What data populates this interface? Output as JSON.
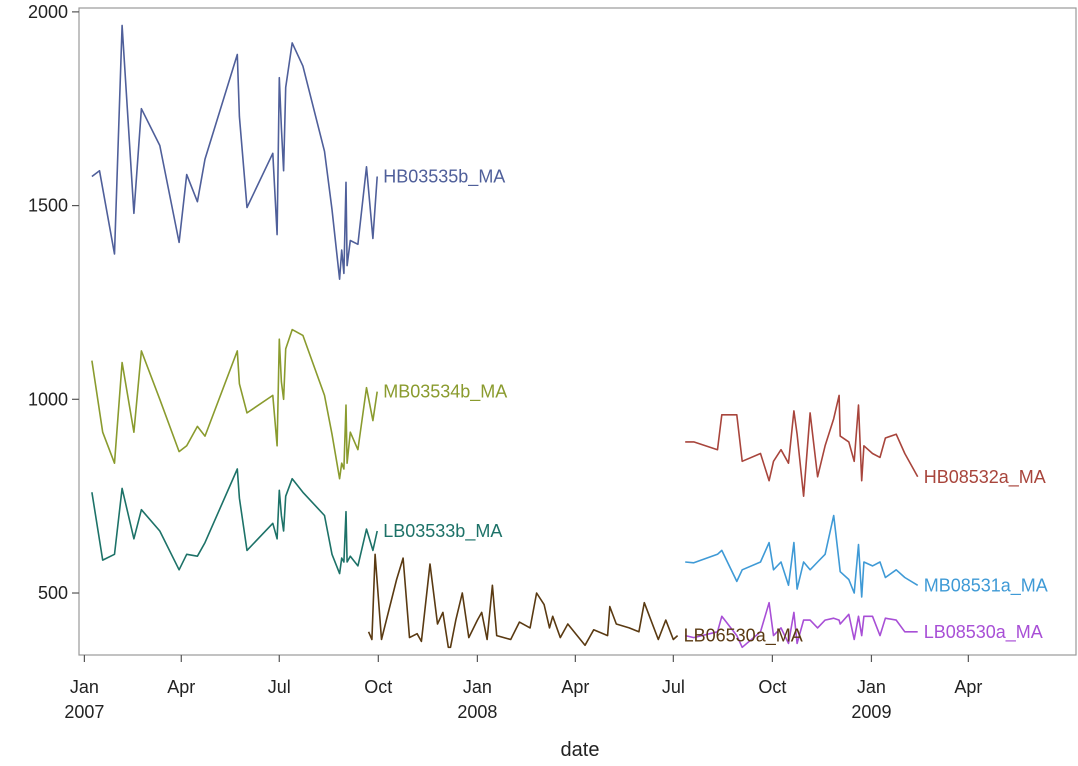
{
  "chart_data": {
    "type": "line",
    "title": "",
    "xlabel": "date",
    "ylabel": "",
    "x_type": "date",
    "xlim": [
      "2006-12-27",
      "2009-07-10"
    ],
    "ylim": [
      340,
      2010
    ],
    "grid": false,
    "legend": "none; series labelled at line ends",
    "y_ticks": [
      500,
      1000,
      1500,
      2000
    ],
    "x_ticks": [
      {
        "date": "2007-01-01",
        "label": "Jan",
        "sublabel": "2007"
      },
      {
        "date": "2007-04-01",
        "label": "Apr",
        "sublabel": ""
      },
      {
        "date": "2007-07-01",
        "label": "Jul",
        "sublabel": ""
      },
      {
        "date": "2007-10-01",
        "label": "Oct",
        "sublabel": ""
      },
      {
        "date": "2008-01-01",
        "label": "Jan",
        "sublabel": "2008"
      },
      {
        "date": "2008-04-01",
        "label": "Apr",
        "sublabel": ""
      },
      {
        "date": "2008-07-01",
        "label": "Jul",
        "sublabel": ""
      },
      {
        "date": "2008-10-01",
        "label": "Oct",
        "sublabel": ""
      },
      {
        "date": "2009-01-01",
        "label": "Jan",
        "sublabel": "2009"
      },
      {
        "date": "2009-04-01",
        "label": "Apr",
        "sublabel": ""
      }
    ],
    "series": [
      {
        "name": "HB03535b_MA",
        "color": "#4f5f9a",
        "points": [
          [
            "2007-01-08",
            1575
          ],
          [
            "2007-01-15",
            1590
          ],
          [
            "2007-01-29",
            1375
          ],
          [
            "2007-02-05",
            1965
          ],
          [
            "2007-02-16",
            1480
          ],
          [
            "2007-02-23",
            1750
          ],
          [
            "2007-03-12",
            1655
          ],
          [
            "2007-03-30",
            1405
          ],
          [
            "2007-04-06",
            1580
          ],
          [
            "2007-04-16",
            1510
          ],
          [
            "2007-04-23",
            1620
          ],
          [
            "2007-05-23",
            1890
          ],
          [
            "2007-05-25",
            1730
          ],
          [
            "2007-06-01",
            1495
          ],
          [
            "2007-06-25",
            1635
          ],
          [
            "2007-06-29",
            1425
          ],
          [
            "2007-07-01",
            1830
          ],
          [
            "2007-07-03",
            1700
          ],
          [
            "2007-07-05",
            1590
          ],
          [
            "2007-07-07",
            1805
          ],
          [
            "2007-07-13",
            1920
          ],
          [
            "2007-07-23",
            1860
          ],
          [
            "2007-08-12",
            1640
          ],
          [
            "2007-08-19",
            1490
          ],
          [
            "2007-08-26",
            1310
          ],
          [
            "2007-08-28",
            1385
          ],
          [
            "2007-08-30",
            1325
          ],
          [
            "2007-09-01",
            1560
          ],
          [
            "2007-09-02",
            1345
          ],
          [
            "2007-09-05",
            1410
          ],
          [
            "2007-09-12",
            1400
          ],
          [
            "2007-09-20",
            1600
          ],
          [
            "2007-09-26",
            1415
          ],
          [
            "2007-09-30",
            1575
          ]
        ]
      },
      {
        "name": "MB03534b_MA",
        "color": "#8a9b2e",
        "points": [
          [
            "2007-01-08",
            1100
          ],
          [
            "2007-01-18",
            915
          ],
          [
            "2007-01-29",
            835
          ],
          [
            "2007-02-05",
            1095
          ],
          [
            "2007-02-16",
            915
          ],
          [
            "2007-02-23",
            1125
          ],
          [
            "2007-03-12",
            1000
          ],
          [
            "2007-03-30",
            865
          ],
          [
            "2007-04-06",
            880
          ],
          [
            "2007-04-16",
            930
          ],
          [
            "2007-04-23",
            905
          ],
          [
            "2007-05-23",
            1125
          ],
          [
            "2007-05-25",
            1040
          ],
          [
            "2007-06-01",
            965
          ],
          [
            "2007-06-25",
            1010
          ],
          [
            "2007-06-29",
            880
          ],
          [
            "2007-07-01",
            1155
          ],
          [
            "2007-07-03",
            1045
          ],
          [
            "2007-07-05",
            1000
          ],
          [
            "2007-07-07",
            1130
          ],
          [
            "2007-07-13",
            1180
          ],
          [
            "2007-07-23",
            1165
          ],
          [
            "2007-08-12",
            1010
          ],
          [
            "2007-08-19",
            910
          ],
          [
            "2007-08-26",
            795
          ],
          [
            "2007-08-28",
            835
          ],
          [
            "2007-08-30",
            820
          ],
          [
            "2007-09-01",
            985
          ],
          [
            "2007-09-02",
            835
          ],
          [
            "2007-09-05",
            915
          ],
          [
            "2007-09-12",
            870
          ],
          [
            "2007-09-20",
            1030
          ],
          [
            "2007-09-26",
            945
          ],
          [
            "2007-09-30",
            1020
          ]
        ]
      },
      {
        "name": "LB03533b_MA",
        "color": "#1d7268",
        "points": [
          [
            "2007-01-08",
            760
          ],
          [
            "2007-01-18",
            585
          ],
          [
            "2007-01-29",
            600
          ],
          [
            "2007-02-05",
            770
          ],
          [
            "2007-02-16",
            640
          ],
          [
            "2007-02-23",
            715
          ],
          [
            "2007-03-12",
            660
          ],
          [
            "2007-03-30",
            560
          ],
          [
            "2007-04-06",
            600
          ],
          [
            "2007-04-16",
            595
          ],
          [
            "2007-04-23",
            630
          ],
          [
            "2007-05-23",
            820
          ],
          [
            "2007-05-25",
            745
          ],
          [
            "2007-06-01",
            610
          ],
          [
            "2007-06-25",
            680
          ],
          [
            "2007-06-29",
            640
          ],
          [
            "2007-07-01",
            765
          ],
          [
            "2007-07-03",
            700
          ],
          [
            "2007-07-05",
            660
          ],
          [
            "2007-07-07",
            750
          ],
          [
            "2007-07-13",
            795
          ],
          [
            "2007-07-23",
            760
          ],
          [
            "2007-08-12",
            700
          ],
          [
            "2007-08-19",
            600
          ],
          [
            "2007-08-26",
            550
          ],
          [
            "2007-08-28",
            590
          ],
          [
            "2007-08-30",
            580
          ],
          [
            "2007-09-01",
            710
          ],
          [
            "2007-09-02",
            580
          ],
          [
            "2007-09-05",
            595
          ],
          [
            "2007-09-12",
            570
          ],
          [
            "2007-09-20",
            665
          ],
          [
            "2007-09-26",
            610
          ],
          [
            "2007-09-30",
            660
          ]
        ]
      },
      {
        "name": "LB06530a_MA",
        "color": "#5a3a12",
        "points": [
          [
            "2007-09-22",
            400
          ],
          [
            "2007-09-25",
            380
          ],
          [
            "2007-09-28",
            600
          ],
          [
            "2007-10-04",
            380
          ],
          [
            "2007-10-18",
            535
          ],
          [
            "2007-10-24",
            590
          ],
          [
            "2007-10-30",
            385
          ],
          [
            "2007-11-06",
            395
          ],
          [
            "2007-11-10",
            375
          ],
          [
            "2007-11-18",
            575
          ],
          [
            "2007-11-25",
            420
          ],
          [
            "2007-11-30",
            450
          ],
          [
            "2007-12-05",
            360
          ],
          [
            "2007-12-07",
            360
          ],
          [
            "2007-12-12",
            430
          ],
          [
            "2007-12-18",
            500
          ],
          [
            "2007-12-24",
            385
          ],
          [
            "2008-01-01",
            430
          ],
          [
            "2008-01-05",
            450
          ],
          [
            "2008-01-10",
            380
          ],
          [
            "2008-01-15",
            520
          ],
          [
            "2008-01-19",
            390
          ],
          [
            "2008-02-01",
            380
          ],
          [
            "2008-02-09",
            425
          ],
          [
            "2008-02-19",
            410
          ],
          [
            "2008-02-25",
            500
          ],
          [
            "2008-03-03",
            470
          ],
          [
            "2008-03-08",
            410
          ],
          [
            "2008-03-11",
            440
          ],
          [
            "2008-03-18",
            385
          ],
          [
            "2008-03-25",
            420
          ],
          [
            "2008-04-10",
            365
          ],
          [
            "2008-04-18",
            405
          ],
          [
            "2008-05-01",
            390
          ],
          [
            "2008-05-03",
            465
          ],
          [
            "2008-05-09",
            420
          ],
          [
            "2008-05-21",
            410
          ],
          [
            "2008-05-30",
            400
          ],
          [
            "2008-06-04",
            475
          ],
          [
            "2008-06-17",
            380
          ],
          [
            "2008-06-24",
            430
          ],
          [
            "2008-07-01",
            380
          ],
          [
            "2008-07-05",
            390
          ]
        ]
      },
      {
        "name": "HB08532a_MA",
        "color": "#a8453c",
        "points": [
          [
            "2008-07-12",
            890
          ],
          [
            "2008-07-20",
            890
          ],
          [
            "2008-08-11",
            870
          ],
          [
            "2008-08-15",
            960
          ],
          [
            "2008-08-29",
            960
          ],
          [
            "2008-09-03",
            840
          ],
          [
            "2008-09-20",
            860
          ],
          [
            "2008-09-28",
            790
          ],
          [
            "2008-10-02",
            840
          ],
          [
            "2008-10-09",
            870
          ],
          [
            "2008-10-16",
            835
          ],
          [
            "2008-10-21",
            970
          ],
          [
            "2008-10-24",
            910
          ],
          [
            "2008-10-30",
            750
          ],
          [
            "2008-11-05",
            965
          ],
          [
            "2008-11-12",
            800
          ],
          [
            "2008-11-19",
            880
          ],
          [
            "2008-11-27",
            950
          ],
          [
            "2008-12-02",
            1010
          ],
          [
            "2008-12-03",
            905
          ],
          [
            "2008-12-11",
            890
          ],
          [
            "2008-12-16",
            840
          ],
          [
            "2008-12-20",
            985
          ],
          [
            "2008-12-23",
            790
          ],
          [
            "2008-12-25",
            880
          ],
          [
            "2009-01-02",
            860
          ],
          [
            "2009-01-09",
            850
          ],
          [
            "2009-01-14",
            900
          ],
          [
            "2009-01-24",
            910
          ],
          [
            "2009-02-01",
            860
          ],
          [
            "2009-02-13",
            800
          ]
        ]
      },
      {
        "name": "MB08531a_MA",
        "color": "#3f9ad6",
        "points": [
          [
            "2008-07-12",
            580
          ],
          [
            "2008-07-20",
            578
          ],
          [
            "2008-08-11",
            600
          ],
          [
            "2008-08-15",
            610
          ],
          [
            "2008-08-29",
            530
          ],
          [
            "2008-09-03",
            560
          ],
          [
            "2008-09-20",
            580
          ],
          [
            "2008-09-28",
            630
          ],
          [
            "2008-10-02",
            560
          ],
          [
            "2008-10-09",
            580
          ],
          [
            "2008-10-16",
            520
          ],
          [
            "2008-10-21",
            630
          ],
          [
            "2008-10-24",
            510
          ],
          [
            "2008-10-30",
            580
          ],
          [
            "2008-11-05",
            560
          ],
          [
            "2008-11-12",
            580
          ],
          [
            "2008-11-19",
            600
          ],
          [
            "2008-11-27",
            700
          ],
          [
            "2008-12-02",
            580
          ],
          [
            "2008-12-03",
            555
          ],
          [
            "2008-12-11",
            535
          ],
          [
            "2008-12-16",
            500
          ],
          [
            "2008-12-20",
            625
          ],
          [
            "2008-12-23",
            490
          ],
          [
            "2008-12-25",
            580
          ],
          [
            "2009-01-02",
            570
          ],
          [
            "2009-01-09",
            580
          ],
          [
            "2009-01-14",
            540
          ],
          [
            "2009-01-24",
            560
          ],
          [
            "2009-02-01",
            540
          ],
          [
            "2009-02-13",
            520
          ]
        ]
      },
      {
        "name": "LB08530a_MA",
        "color": "#a84fd6",
        "points": [
          [
            "2008-07-12",
            390
          ],
          [
            "2008-07-20",
            385
          ],
          [
            "2008-08-11",
            400
          ],
          [
            "2008-08-15",
            440
          ],
          [
            "2008-08-29",
            390
          ],
          [
            "2008-09-03",
            360
          ],
          [
            "2008-09-20",
            400
          ],
          [
            "2008-09-28",
            475
          ],
          [
            "2008-10-02",
            390
          ],
          [
            "2008-10-09",
            410
          ],
          [
            "2008-10-16",
            370
          ],
          [
            "2008-10-21",
            450
          ],
          [
            "2008-10-24",
            370
          ],
          [
            "2008-10-30",
            430
          ],
          [
            "2008-11-05",
            430
          ],
          [
            "2008-11-12",
            410
          ],
          [
            "2008-11-19",
            430
          ],
          [
            "2008-11-27",
            435
          ],
          [
            "2008-12-02",
            430
          ],
          [
            "2008-12-03",
            420
          ],
          [
            "2008-12-11",
            445
          ],
          [
            "2008-12-16",
            380
          ],
          [
            "2008-12-20",
            440
          ],
          [
            "2008-12-23",
            390
          ],
          [
            "2008-12-25",
            440
          ],
          [
            "2009-01-02",
            440
          ],
          [
            "2009-01-09",
            390
          ],
          [
            "2009-01-14",
            435
          ],
          [
            "2009-01-24",
            430
          ],
          [
            "2009-02-01",
            400
          ],
          [
            "2009-02-13",
            400
          ]
        ]
      }
    ]
  }
}
